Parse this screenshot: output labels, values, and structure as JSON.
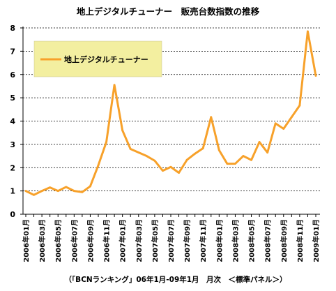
{
  "chart_data": {
    "type": "line",
    "title": "地上デジタルチューナー　販売台数指数の推移",
    "footer": "（「BCNランキング」06年1月-09年1月　月次　＜標準パネル＞）",
    "ylim": [
      0,
      8
    ],
    "y_ticks": [
      "0",
      "1",
      "2",
      "3",
      "4",
      "5",
      "6",
      "7",
      "8"
    ],
    "grid": "horizontal dashed",
    "legend_position": "top-left",
    "series": [
      {
        "name": "地上デジタルチューナー",
        "color": "#F7A12A",
        "values": [
          1.0,
          0.83,
          1.0,
          1.15,
          1.0,
          1.17,
          1.0,
          0.95,
          1.2,
          2.1,
          3.1,
          5.55,
          3.6,
          2.8,
          2.65,
          2.5,
          2.3,
          1.87,
          2.03,
          1.78,
          2.33,
          2.6,
          2.83,
          4.17,
          2.75,
          2.17,
          2.17,
          2.5,
          2.33,
          3.1,
          2.65,
          3.9,
          3.67,
          4.17,
          4.67,
          7.85,
          5.95
        ]
      }
    ],
    "x": [
      "2006年01月",
      "2006年02月",
      "2006年03月",
      "2006年04月",
      "2006年05月",
      "2006年06月",
      "2006年07月",
      "2006年08月",
      "2006年09月",
      "2006年10月",
      "2006年11月",
      "2006年12月",
      "2007年01月",
      "2007年02月",
      "2007年03月",
      "2007年04月",
      "2007年05月",
      "2007年06月",
      "2007年07月",
      "2007年08月",
      "2007年09月",
      "2007年10月",
      "2007年11月",
      "2007年12月",
      "2008年01月",
      "2008年02月",
      "2008年03月",
      "2008年04月",
      "2008年05月",
      "2008年06月",
      "2008年07月",
      "2008年08月",
      "2008年09月",
      "2008年10月",
      "2008年11月",
      "2008年12月",
      "2009年01月"
    ],
    "x_tick_labels": [
      "2006年01月",
      "2006年03月",
      "2006年05月",
      "2006年07月",
      "2006年09月",
      "2006年11月",
      "2007年01月",
      "2007年03月",
      "2007年05月",
      "2007年07月",
      "2007年09月",
      "2007年11月",
      "2008年01月",
      "2008年03月",
      "2008年05月",
      "2008年07月",
      "2008年09月",
      "2008年11月",
      "2009年01月"
    ]
  }
}
